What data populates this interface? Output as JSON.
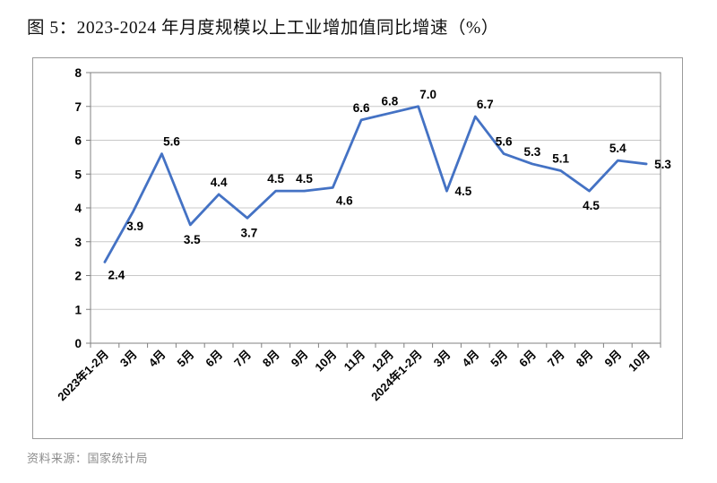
{
  "title": "图 5：2023-2024 年月度规模以上工业增加值同比增速（%）",
  "source": "资料来源：国家统计局",
  "chart_data": {
    "type": "line",
    "title": "图 5：2023-2024 年月度规模以上工业增加值同比增速（%）",
    "categories": [
      "2023年1-2月",
      "3月",
      "4月",
      "5月",
      "6月",
      "7月",
      "8月",
      "9月",
      "10月",
      "11月",
      "12月",
      "2024年1-2月",
      "3月",
      "4月",
      "5月",
      "6月",
      "7月",
      "8月",
      "9月",
      "10月"
    ],
    "values": [
      2.4,
      3.9,
      5.6,
      3.5,
      4.4,
      3.7,
      4.5,
      4.5,
      4.6,
      6.6,
      6.8,
      7.0,
      4.5,
      6.7,
      5.6,
      5.3,
      5.1,
      4.5,
      5.4,
      5.3
    ],
    "label_positions": [
      "below-right",
      "below",
      "above-right",
      "below",
      "above",
      "below",
      "above",
      "above",
      "below-right",
      "above",
      "above",
      "above-right",
      "right",
      "above-right",
      "above",
      "above",
      "above",
      "below",
      "above",
      "right"
    ],
    "xlabel": "",
    "ylabel": "",
    "ylim": [
      0,
      8
    ],
    "ytick_step": 1,
    "grid": true,
    "legend": "none",
    "line_color": "#4472C4",
    "grid_color": "#c8c8c8",
    "axis_color": "#808080",
    "label_color": "#000000"
  }
}
